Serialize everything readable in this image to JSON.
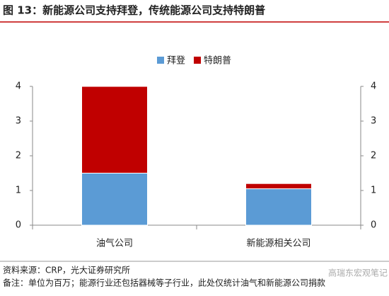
{
  "chart_data": {
    "type": "stacked_bar",
    "title": "图 13：新能源公司支持拜登，传统能源公司支持特朗普",
    "categories": [
      "油气公司",
      "新能源相关公司"
    ],
    "series": [
      {
        "name": "拜登",
        "color": "#5b9bd5",
        "values": [
          1.5,
          1.05
        ]
      },
      {
        "name": "特朗普",
        "color": "#c00000",
        "values": [
          2.5,
          0.15
        ]
      }
    ],
    "ylim": [
      0,
      4
    ],
    "yticks": [
      0,
      1,
      2,
      3,
      4
    ],
    "y2lim": [
      0,
      4
    ],
    "y2ticks": [
      0,
      1,
      2,
      3,
      4
    ],
    "legend": "top",
    "source": "资料来源：CRP，光大证券研究所",
    "note": "备注：单位为百万；能源行业还包括器械等子行业，此处仅统计油气和新能源公司捐款",
    "watermark": "高瑞东宏观笔记"
  }
}
